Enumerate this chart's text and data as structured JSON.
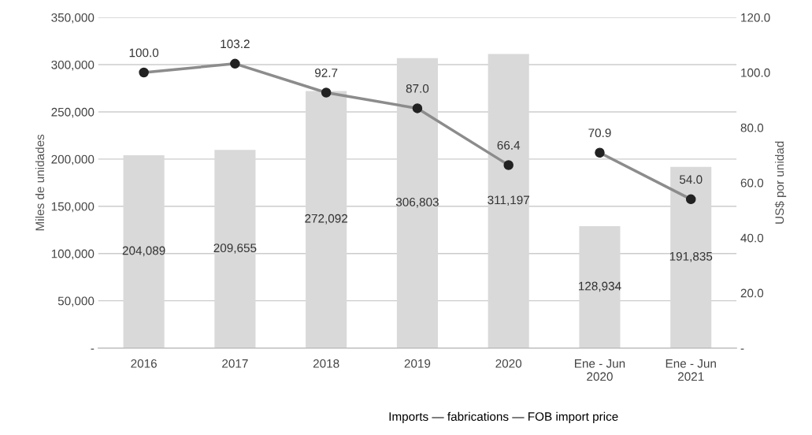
{
  "chart_data": {
    "type": "bar",
    "ylabel": "Miles de unidades",
    "y2label": "US$ por unidad",
    "categories": [
      "2016",
      "2017",
      "2018",
      "2019",
      "2020",
      "Ene - Jun\n2020",
      "Ene - Jun\n2021"
    ],
    "series": [
      {
        "color": "#d9d9d9",
        "values": [
          204089,
          209655,
          272092,
          306803,
          311197,
          128934,
          191835
        ],
        "value_labels": [
          "204,089",
          "209,655",
          "272,092",
          "306,803",
          "311,197",
          "128,934",
          "191,835"
        ]
      },
      {
        "type": "line",
        "axis": "y2",
        "color": "#8c8c8c",
        "marker": "circle",
        "values": [
          100.0,
          103.2,
          92.7,
          87.0,
          66.4,
          null,
          null
        ],
        "value_labels": [
          "100.0",
          "103.2",
          "92.7",
          "87.0",
          "66.4",
          null,
          null
        ]
      },
      {
        "type": "line",
        "axis": "y2",
        "color": "#8c8c8c",
        "marker": "circle",
        "values": [
          null,
          null,
          null,
          null,
          null,
          70.9,
          54.0
        ],
        "value_labels": [
          null,
          null,
          null,
          null,
          null,
          "70.9",
          "54.0"
        ]
      }
    ],
    "ylim": [
      0,
      350000
    ],
    "yticks": [
      {
        "value": 0,
        "label": "-"
      },
      {
        "value": 50000,
        "label": "50,000"
      },
      {
        "value": 100000,
        "label": "100,000"
      },
      {
        "value": 150000,
        "label": "150,000"
      },
      {
        "value": 200000,
        "label": "200,000"
      },
      {
        "value": 250000,
        "label": "250,000"
      },
      {
        "value": 300000,
        "label": "300,000"
      },
      {
        "value": 350000,
        "label": "350,000"
      }
    ],
    "y2lim": [
      0,
      120
    ],
    "y2ticks": [
      {
        "value": 0,
        "label": "-"
      },
      {
        "value": 20,
        "label": "20.0"
      },
      {
        "value": 40,
        "label": "40.0"
      },
      {
        "value": 60,
        "label": "60.0"
      },
      {
        "value": 80,
        "label": "80.0"
      },
      {
        "value": 100,
        "label": "100.0"
      },
      {
        "value": 120,
        "label": "120.0"
      }
    ],
    "grid": "y",
    "legend": false,
    "annotations": [
      "Imports — fabrications — FOB import price"
    ]
  }
}
